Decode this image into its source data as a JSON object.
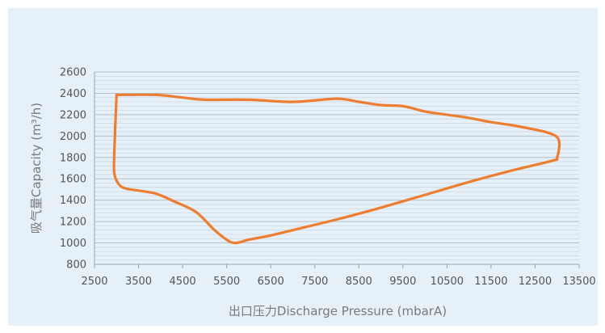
{
  "chart_data": {
    "type": "line",
    "title": "",
    "xlabel": "出口压力Discharge Pressure (mbarA)",
    "ylabel": "吸气量Capacity (m³/h)",
    "xlim": [
      2500,
      13500
    ],
    "ylim": [
      800,
      2600
    ],
    "xticks": [
      "2500",
      "3500",
      "4500",
      "5500",
      "6500",
      "7500",
      "8500",
      "9500",
      "10500",
      "11500",
      "12500",
      "13500"
    ],
    "yticks": [
      "800",
      "1000",
      "1200",
      "1400",
      "1600",
      "1800",
      "2000",
      "2200",
      "2400",
      "2600"
    ],
    "grid": true,
    "line_color": "#ed7d31",
    "series": [
      {
        "closed": true,
        "x": [
          3000,
          3900,
          4500,
          5000,
          6000,
          7000,
          8000,
          8500,
          9000,
          9500,
          10000,
          10500,
          11000,
          11500,
          12000,
          12500,
          12800,
          13000,
          13050,
          13000,
          12900,
          12000,
          11000,
          10000,
          9000,
          8000,
          7000,
          6500,
          6000,
          5700,
          5500,
          5200,
          4800,
          4300,
          3900,
          3500,
          3200,
          3050,
          2950,
          2950,
          3000
        ],
        "y": [
          2385,
          2385,
          2360,
          2340,
          2340,
          2320,
          2350,
          2320,
          2290,
          2280,
          2230,
          2200,
          2170,
          2130,
          2100,
          2060,
          2030,
          1990,
          1920,
          1800,
          1770,
          1680,
          1570,
          1450,
          1330,
          1220,
          1120,
          1070,
          1030,
          1000,
          1030,
          1130,
          1290,
          1390,
          1460,
          1490,
          1510,
          1550,
          1650,
          1850,
          2385
        ]
      }
    ]
  }
}
